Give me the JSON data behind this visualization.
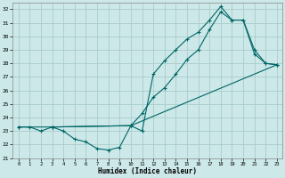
{
  "xlabel": "Humidex (Indice chaleur)",
  "bg_color": "#cce8e8",
  "grid_color": "#aacccc",
  "line_color": "#006666",
  "xlim": [
    -0.5,
    23.5
  ],
  "ylim": [
    21,
    32.5
  ],
  "xticks": [
    0,
    1,
    2,
    3,
    4,
    5,
    6,
    7,
    8,
    9,
    10,
    11,
    12,
    13,
    14,
    15,
    16,
    17,
    18,
    19,
    20,
    21,
    22,
    23
  ],
  "yticks": [
    21,
    22,
    23,
    24,
    25,
    26,
    27,
    28,
    29,
    30,
    31,
    32
  ],
  "line1_x": [
    0,
    1,
    2,
    3,
    4,
    5,
    6,
    7,
    8,
    9,
    10,
    11,
    12,
    13,
    14,
    15,
    16,
    17,
    18,
    19,
    20,
    21,
    22,
    23
  ],
  "line1_y": [
    23.3,
    23.3,
    23.0,
    23.3,
    23.0,
    22.4,
    22.2,
    21.7,
    21.6,
    21.8,
    23.4,
    23.0,
    27.2,
    28.2,
    29.0,
    29.8,
    30.3,
    31.2,
    32.2,
    31.2,
    31.2,
    28.7,
    28.0,
    27.9
  ],
  "line2_x": [
    3,
    10,
    11,
    12,
    13,
    14,
    15,
    16,
    17,
    18,
    19,
    20,
    21,
    22,
    23
  ],
  "line2_y": [
    23.3,
    23.4,
    24.3,
    25.5,
    26.2,
    27.2,
    28.3,
    29.0,
    30.5,
    31.8,
    31.2,
    31.2,
    29.0,
    28.0,
    27.9
  ],
  "line3_x": [
    0,
    3,
    10,
    23
  ],
  "line3_y": [
    23.3,
    23.3,
    23.4,
    27.9
  ]
}
